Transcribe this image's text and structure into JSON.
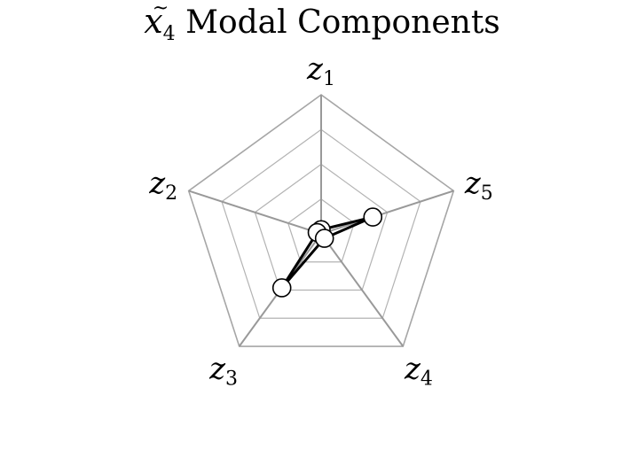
{
  "chart_data": {
    "type": "radar",
    "title": {
      "symbol": "x",
      "accent": "~",
      "subscript": "4",
      "text": " Modal Components"
    },
    "axes": [
      {
        "var": "z",
        "sub": "1"
      },
      {
        "var": "z",
        "sub": "2"
      },
      {
        "var": "z",
        "sub": "3"
      },
      {
        "var": "z",
        "sub": "4"
      },
      {
        "var": "z",
        "sub": "5"
      }
    ],
    "range": [
      0,
      1
    ],
    "grid_levels": 4,
    "series": [
      {
        "values": [
          0.03,
          0.03,
          0.48,
          0.04,
          0.39
        ],
        "color": "#000000"
      }
    ]
  }
}
